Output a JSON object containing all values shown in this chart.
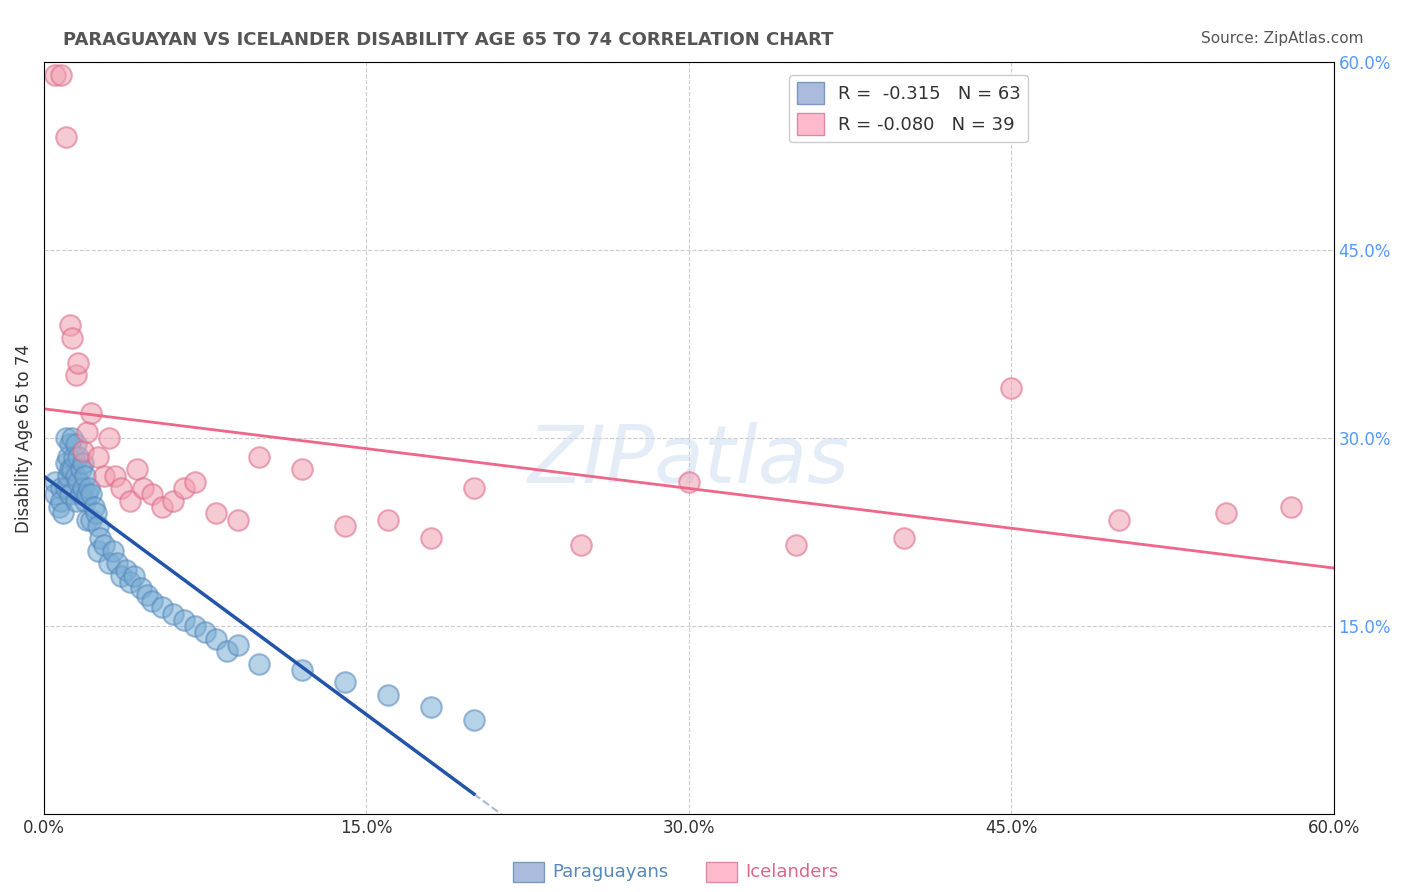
{
  "title": "PARAGUAYAN VS ICELANDER DISABILITY AGE 65 TO 74 CORRELATION CHART",
  "source": "Source: ZipAtlas.com",
  "ylabel": "Disability Age 65 to 74",
  "xlim": [
    0.0,
    0.6
  ],
  "ylim": [
    0.0,
    0.6
  ],
  "xtick_vals": [
    0.0,
    0.15,
    0.3,
    0.45,
    0.6
  ],
  "ytick_vals_right": [
    0.15,
    0.3,
    0.45,
    0.6
  ],
  "grid_color": "#cccccc",
  "background_color": "#ffffff",
  "blue_color": "#7aadd4",
  "blue_edge_color": "#5588bb",
  "pink_color": "#f0a0b0",
  "pink_edge_color": "#dd6688",
  "blue_line_color": "#2255aa",
  "pink_line_color": "#ee6688",
  "dash_line_color": "#aabbcc",
  "legend_blue_label": "R =  -0.315   N = 63",
  "legend_pink_label": "R = -0.080   N = 39",
  "watermark_text": "ZIPatlas",
  "paraguayan_x": [
    0.005,
    0.005,
    0.007,
    0.008,
    0.008,
    0.009,
    0.01,
    0.01,
    0.01,
    0.011,
    0.011,
    0.012,
    0.012,
    0.012,
    0.013,
    0.013,
    0.014,
    0.015,
    0.015,
    0.015,
    0.016,
    0.016,
    0.017,
    0.017,
    0.018,
    0.018,
    0.019,
    0.019,
    0.02,
    0.02,
    0.021,
    0.022,
    0.022,
    0.023,
    0.024,
    0.025,
    0.025,
    0.026,
    0.028,
    0.03,
    0.032,
    0.034,
    0.036,
    0.038,
    0.04,
    0.042,
    0.045,
    0.048,
    0.05,
    0.055,
    0.06,
    0.065,
    0.07,
    0.075,
    0.08,
    0.085,
    0.09,
    0.1,
    0.12,
    0.14,
    0.16,
    0.18,
    0.2
  ],
  "paraguayan_y": [
    0.265,
    0.255,
    0.245,
    0.26,
    0.25,
    0.24,
    0.3,
    0.28,
    0.26,
    0.285,
    0.27,
    0.295,
    0.275,
    0.255,
    0.3,
    0.275,
    0.285,
    0.295,
    0.27,
    0.25,
    0.285,
    0.265,
    0.275,
    0.255,
    0.28,
    0.26,
    0.27,
    0.25,
    0.255,
    0.235,
    0.26,
    0.255,
    0.235,
    0.245,
    0.24,
    0.23,
    0.21,
    0.22,
    0.215,
    0.2,
    0.21,
    0.2,
    0.19,
    0.195,
    0.185,
    0.19,
    0.18,
    0.175,
    0.17,
    0.165,
    0.16,
    0.155,
    0.15,
    0.145,
    0.14,
    0.13,
    0.135,
    0.12,
    0.115,
    0.105,
    0.095,
    0.085,
    0.075
  ],
  "icelander_x": [
    0.005,
    0.008,
    0.01,
    0.012,
    0.013,
    0.015,
    0.016,
    0.018,
    0.02,
    0.022,
    0.025,
    0.028,
    0.03,
    0.033,
    0.036,
    0.04,
    0.043,
    0.046,
    0.05,
    0.055,
    0.06,
    0.065,
    0.07,
    0.08,
    0.09,
    0.1,
    0.12,
    0.14,
    0.16,
    0.18,
    0.2,
    0.25,
    0.3,
    0.35,
    0.4,
    0.45,
    0.5,
    0.55,
    0.58
  ],
  "icelander_y": [
    0.59,
    0.59,
    0.54,
    0.39,
    0.38,
    0.35,
    0.36,
    0.29,
    0.305,
    0.32,
    0.285,
    0.27,
    0.3,
    0.27,
    0.26,
    0.25,
    0.275,
    0.26,
    0.255,
    0.245,
    0.25,
    0.26,
    0.265,
    0.24,
    0.235,
    0.285,
    0.275,
    0.23,
    0.235,
    0.22,
    0.26,
    0.215,
    0.265,
    0.215,
    0.22,
    0.34,
    0.235,
    0.24,
    0.245
  ]
}
